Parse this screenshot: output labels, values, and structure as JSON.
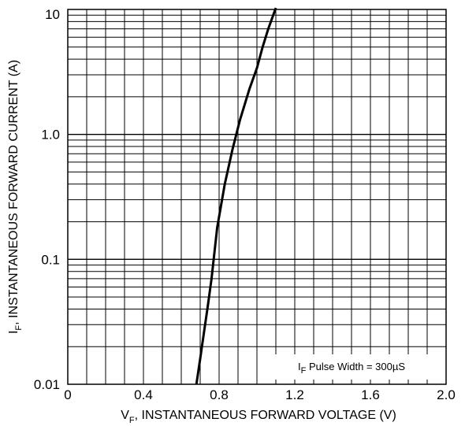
{
  "chart_data": {
    "type": "line",
    "x_scale": "linear",
    "y_scale": "log",
    "xlim": [
      0,
      2.0
    ],
    "ylim": [
      0.01,
      10
    ],
    "grid": true,
    "x_ticks": [
      {
        "value": 0,
        "label": "0"
      },
      {
        "value": 0.4,
        "label": "0.4"
      },
      {
        "value": 0.8,
        "label": "0.8"
      },
      {
        "value": 1.2,
        "label": "1.2"
      },
      {
        "value": 1.6,
        "label": "1.6"
      },
      {
        "value": 2.0,
        "label": "2.0"
      }
    ],
    "y_ticks": [
      {
        "value": 0.01,
        "label": "0.01"
      },
      {
        "value": 0.1,
        "label": "0.1"
      },
      {
        "value": 1.0,
        "label": "1.0"
      },
      {
        "value": 10,
        "label": "10"
      }
    ],
    "xlabel": {
      "main": "V",
      "subscript": "F",
      "rest": ", INSTANTANEOUS FORWARD VOLTAGE (V)"
    },
    "ylabel": {
      "main": "I",
      "subscript": "F",
      "rest": ", INSTANTANEOUS FORWARD CURRENT (A)"
    },
    "annotation": {
      "main": "I",
      "subscript": "F",
      "rest": " Pulse Width = 300µS"
    },
    "series": [
      {
        "color": "#000000",
        "x": [
          0.68,
          0.7,
          0.72,
          0.74,
          0.76,
          0.79,
          0.83,
          0.87,
          0.91,
          0.96,
          1.0,
          1.03,
          1.06,
          1.1
        ],
        "y": [
          0.01,
          0.016,
          0.026,
          0.042,
          0.07,
          0.18,
          0.4,
          0.75,
          1.3,
          2.3,
          3.4,
          5.0,
          7.0,
          10.5
        ]
      }
    ]
  }
}
